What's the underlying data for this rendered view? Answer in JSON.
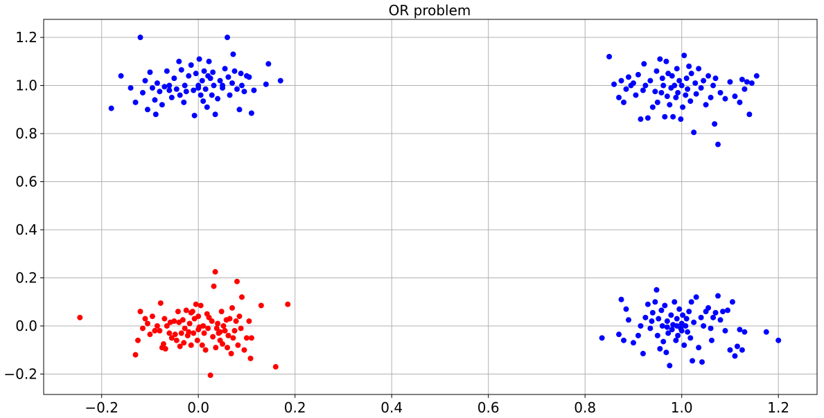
{
  "chart_data": {
    "type": "scatter",
    "title": "OR problem",
    "xlabel": "",
    "ylabel": "",
    "xlim": [
      -0.32,
      1.28
    ],
    "ylim": [
      -0.285,
      1.275
    ],
    "xticks": [
      -0.2,
      0.0,
      0.2,
      0.4,
      0.6,
      0.8,
      1.0,
      1.2
    ],
    "xtick_labels": [
      "−0.2",
      "0.0",
      "0.2",
      "0.4",
      "0.6",
      "0.8",
      "1.0",
      "1.2"
    ],
    "yticks": [
      -0.2,
      0.0,
      0.2,
      0.4,
      0.6,
      0.8,
      1.0,
      1.2
    ],
    "ytick_labels": [
      "−0.2",
      "0.0",
      "0.2",
      "0.4",
      "0.6",
      "0.8",
      "1.0",
      "1.2"
    ],
    "grid": true,
    "legend": "none",
    "series": [
      {
        "color": "#ff0000",
        "points": [
          [
            -0.245,
            0.035
          ],
          [
            -0.13,
            -0.12
          ],
          [
            -0.125,
            -0.06
          ],
          [
            -0.12,
            0.06
          ],
          [
            -0.115,
            -0.01
          ],
          [
            -0.11,
            0.03
          ],
          [
            -0.105,
            0.01
          ],
          [
            -0.1,
            -0.035
          ],
          [
            -0.095,
            0.04
          ],
          [
            -0.09,
            -0.02
          ],
          [
            -0.085,
            0.0
          ],
          [
            -0.08,
            -0.02
          ],
          [
            -0.078,
            0.095
          ],
          [
            -0.075,
            -0.09
          ],
          [
            -0.072,
            -0.075
          ],
          [
            -0.07,
            0.03
          ],
          [
            -0.068,
            -0.095
          ],
          [
            -0.065,
            0.0
          ],
          [
            -0.06,
            -0.03
          ],
          [
            -0.058,
            0.015
          ],
          [
            -0.055,
            -0.05
          ],
          [
            -0.05,
            0.02
          ],
          [
            -0.048,
            -0.035
          ],
          [
            -0.045,
            -0.06
          ],
          [
            -0.042,
            0.06
          ],
          [
            -0.04,
            0.015
          ],
          [
            -0.038,
            -0.085
          ],
          [
            -0.035,
            -0.03
          ],
          [
            -0.032,
            0.025
          ],
          [
            -0.03,
            -0.07
          ],
          [
            -0.028,
            -0.01
          ],
          [
            -0.025,
            0.065
          ],
          [
            -0.022,
            -0.04
          ],
          [
            -0.02,
            -0.025
          ],
          [
            -0.018,
            0.01
          ],
          [
            -0.015,
            -0.08
          ],
          [
            -0.012,
            0.06
          ],
          [
            -0.01,
            -0.03
          ],
          [
            -0.008,
            0.03
          ],
          [
            -0.005,
            0.09
          ],
          [
            -0.002,
            -0.06
          ],
          [
            0.0,
            0.04
          ],
          [
            0.002,
            -0.005
          ],
          [
            0.005,
            0.085
          ],
          [
            0.008,
            -0.08
          ],
          [
            0.01,
            0.0
          ],
          [
            0.012,
            -0.03
          ],
          [
            0.015,
            -0.1
          ],
          [
            0.018,
            0.05
          ],
          [
            0.02,
            -0.01
          ],
          [
            0.022,
            0.035
          ],
          [
            0.025,
            -0.205
          ],
          [
            0.028,
            0.02
          ],
          [
            0.03,
            -0.045
          ],
          [
            0.032,
            0.165
          ],
          [
            0.035,
            0.225
          ],
          [
            0.036,
            -0.09
          ],
          [
            0.038,
            -0.01
          ],
          [
            0.04,
            0.01
          ],
          [
            0.042,
            -0.03
          ],
          [
            0.045,
            -0.06
          ],
          [
            0.048,
            0.06
          ],
          [
            0.05,
            -0.075
          ],
          [
            0.052,
            0.0
          ],
          [
            0.055,
            -0.02
          ],
          [
            0.058,
            0.025
          ],
          [
            0.06,
            -0.09
          ],
          [
            0.062,
            -0.04
          ],
          [
            0.065,
            0.03
          ],
          [
            0.068,
            -0.115
          ],
          [
            0.07,
            0.075
          ],
          [
            0.072,
            -0.05
          ],
          [
            0.075,
            -0.02
          ],
          [
            0.078,
            0.02
          ],
          [
            0.08,
            0.185
          ],
          [
            0.082,
            -0.08
          ],
          [
            0.085,
            0.04
          ],
          [
            0.088,
            -0.01
          ],
          [
            0.09,
            0.12
          ],
          [
            0.095,
            -0.1
          ],
          [
            0.1,
            -0.05
          ],
          [
            0.105,
            0.02
          ],
          [
            0.108,
            -0.135
          ],
          [
            0.11,
            -0.05
          ],
          [
            0.13,
            0.085
          ],
          [
            0.16,
            -0.17
          ],
          [
            0.185,
            0.09
          ],
          [
            -0.015,
            0.055
          ],
          [
            0.045,
            -0.025
          ],
          [
            0.0,
            -0.015
          ]
        ]
      },
      {
        "color": "#0000ff",
        "points": [
          [
            -0.18,
            0.905
          ],
          [
            -0.16,
            1.04
          ],
          [
            -0.14,
            0.99
          ],
          [
            -0.13,
            0.93
          ],
          [
            -0.12,
            1.2
          ],
          [
            -0.115,
            0.97
          ],
          [
            -0.11,
            1.02
          ],
          [
            -0.105,
            0.9
          ],
          [
            -0.1,
            1.055
          ],
          [
            -0.095,
            0.99
          ],
          [
            -0.09,
            0.94
          ],
          [
            -0.088,
            0.88
          ],
          [
            -0.085,
            1.01
          ],
          [
            -0.08,
            0.975
          ],
          [
            -0.075,
            0.92
          ],
          [
            -0.07,
            0.995
          ],
          [
            -0.065,
            1.06
          ],
          [
            -0.06,
            0.98
          ],
          [
            -0.055,
            0.95
          ],
          [
            -0.05,
            1.03
          ],
          [
            -0.045,
            0.985
          ],
          [
            -0.04,
            1.1
          ],
          [
            -0.038,
            0.96
          ],
          [
            -0.035,
            1.065
          ],
          [
            -0.03,
            0.93
          ],
          [
            -0.028,
            1.0
          ],
          [
            -0.025,
            0.975
          ],
          [
            -0.02,
            1.04
          ],
          [
            -0.015,
            1.085
          ],
          [
            -0.01,
            0.98
          ],
          [
            -0.008,
            0.875
          ],
          [
            -0.005,
            1.05
          ],
          [
            0.0,
            0.99
          ],
          [
            0.002,
            1.11
          ],
          [
            0.005,
            0.96
          ],
          [
            0.008,
            1.02
          ],
          [
            0.01,
            0.935
          ],
          [
            0.012,
            1.06
          ],
          [
            0.015,
            0.985
          ],
          [
            0.018,
            0.91
          ],
          [
            0.02,
            1.04
          ],
          [
            0.022,
            1.1
          ],
          [
            0.025,
            1.03
          ],
          [
            0.028,
            0.96
          ],
          [
            0.03,
            1.055
          ],
          [
            0.032,
            1.0
          ],
          [
            0.035,
            0.88
          ],
          [
            0.04,
            0.945
          ],
          [
            0.045,
            1.02
          ],
          [
            0.05,
            0.99
          ],
          [
            0.055,
            1.07
          ],
          [
            0.06,
            1.2
          ],
          [
            0.062,
            1.035
          ],
          [
            0.065,
            0.96
          ],
          [
            0.07,
            1.01
          ],
          [
            0.072,
            1.13
          ],
          [
            0.075,
            1.06
          ],
          [
            0.08,
            0.985
          ],
          [
            0.085,
            0.9
          ],
          [
            0.088,
            1.05
          ],
          [
            0.09,
            1.0
          ],
          [
            0.095,
            0.975
          ],
          [
            0.1,
            1.04
          ],
          [
            0.105,
            1.035
          ],
          [
            0.11,
            0.885
          ],
          [
            0.115,
            0.98
          ],
          [
            0.14,
            1.005
          ],
          [
            0.145,
            1.09
          ],
          [
            0.17,
            1.02
          ],
          [
            -0.06,
            1.0
          ],
          [
            0.0,
            1.0
          ],
          [
            0.05,
            1.0
          ],
          [
            0.85,
            1.12
          ],
          [
            0.86,
            1.005
          ],
          [
            0.87,
            0.95
          ],
          [
            0.875,
            1.02
          ],
          [
            0.88,
            0.93
          ],
          [
            0.885,
            0.985
          ],
          [
            0.89,
            1.035
          ],
          [
            0.895,
            1.0
          ],
          [
            0.9,
            1.01
          ],
          [
            0.905,
            0.96
          ],
          [
            0.91,
            1.045
          ],
          [
            0.915,
            0.86
          ],
          [
            0.92,
            0.98
          ],
          [
            0.922,
            1.09
          ],
          [
            0.925,
            1.0
          ],
          [
            0.93,
            0.865
          ],
          [
            0.935,
            1.02
          ],
          [
            0.94,
            0.91
          ],
          [
            0.945,
            0.975
          ],
          [
            0.948,
            1.06
          ],
          [
            0.95,
            0.93
          ],
          [
            0.955,
            1.11
          ],
          [
            0.958,
            0.97
          ],
          [
            0.96,
            1.03
          ],
          [
            0.962,
            1.0
          ],
          [
            0.965,
            0.87
          ],
          [
            0.968,
            1.1
          ],
          [
            0.97,
            0.955
          ],
          [
            0.972,
            1.05
          ],
          [
            0.975,
            0.92
          ],
          [
            0.978,
            0.99
          ],
          [
            0.98,
            1.04
          ],
          [
            0.982,
            0.87
          ],
          [
            0.985,
            1.0
          ],
          [
            0.988,
            0.95
          ],
          [
            0.99,
            1.07
          ],
          [
            0.992,
            0.97
          ],
          [
            0.995,
            1.02
          ],
          [
            0.998,
            0.86
          ],
          [
            1.0,
            1.0
          ],
          [
            1.002,
            0.91
          ],
          [
            1.005,
            1.125
          ],
          [
            1.008,
            0.96
          ],
          [
            1.01,
            1.03
          ],
          [
            1.012,
            0.985
          ],
          [
            1.015,
            1.08
          ],
          [
            1.018,
            0.935
          ],
          [
            1.02,
            1.05
          ],
          [
            1.025,
            0.805
          ],
          [
            1.028,
            1.01
          ],
          [
            1.03,
            0.965
          ],
          [
            1.035,
            1.07
          ],
          [
            1.04,
            0.99
          ],
          [
            1.045,
            1.02
          ],
          [
            1.05,
            0.92
          ],
          [
            1.055,
            1.04
          ],
          [
            1.06,
            0.95
          ],
          [
            1.065,
            1.0
          ],
          [
            1.068,
            0.84
          ],
          [
            1.07,
            1.03
          ],
          [
            1.075,
            0.755
          ],
          [
            1.08,
            0.97
          ],
          [
            1.09,
            0.945
          ],
          [
            1.1,
            1.015
          ],
          [
            1.11,
            0.955
          ],
          [
            1.12,
            0.93
          ],
          [
            1.125,
            1.025
          ],
          [
            1.13,
            0.985
          ],
          [
            1.135,
            1.015
          ],
          [
            1.14,
            0.88
          ],
          [
            1.145,
            1.01
          ],
          [
            1.155,
            1.04
          ],
          [
            0.835,
            -0.05
          ],
          [
            0.87,
            -0.035
          ],
          [
            0.875,
            0.11
          ],
          [
            0.88,
            -0.06
          ],
          [
            0.885,
            0.07
          ],
          [
            0.89,
            0.025
          ],
          [
            0.9,
            -0.07
          ],
          [
            0.91,
            -0.04
          ],
          [
            0.915,
            0.0
          ],
          [
            0.92,
            -0.115
          ],
          [
            0.925,
            0.035
          ],
          [
            0.93,
            0.09
          ],
          [
            0.935,
            -0.01
          ],
          [
            0.938,
            0.02
          ],
          [
            0.94,
            0.055
          ],
          [
            0.945,
            0.1
          ],
          [
            0.948,
            0.15
          ],
          [
            0.95,
            -0.04
          ],
          [
            0.952,
            0.03
          ],
          [
            0.955,
            -0.095
          ],
          [
            0.958,
            0.065
          ],
          [
            0.96,
            0.0
          ],
          [
            0.962,
            -0.065
          ],
          [
            0.965,
            0.085
          ],
          [
            0.968,
            -0.11
          ],
          [
            0.97,
            0.02
          ],
          [
            0.972,
            -0.03
          ],
          [
            0.975,
            -0.165
          ],
          [
            0.978,
            0.045
          ],
          [
            0.98,
            -0.015
          ],
          [
            0.982,
            0.005
          ],
          [
            0.985,
            0.1
          ],
          [
            0.988,
            -0.06
          ],
          [
            0.99,
            0.03
          ],
          [
            0.992,
            -0.04
          ],
          [
            0.995,
            0.07
          ],
          [
            0.998,
            -0.01
          ],
          [
            1.0,
            0.01
          ],
          [
            1.002,
            0.045
          ],
          [
            1.005,
            -0.08
          ],
          [
            1.008,
            0.0
          ],
          [
            1.01,
            0.03
          ],
          [
            1.012,
            -0.025
          ],
          [
            1.015,
            0.06
          ],
          [
            1.018,
            -0.05
          ],
          [
            1.02,
            0.1
          ],
          [
            1.022,
            -0.145
          ],
          [
            1.025,
            0.015
          ],
          [
            1.03,
            0.12
          ],
          [
            1.035,
            -0.09
          ],
          [
            1.04,
            0.035
          ],
          [
            1.042,
            -0.15
          ],
          [
            1.045,
            0.0
          ],
          [
            1.05,
            0.06
          ],
          [
            1.055,
            0.075
          ],
          [
            1.06,
            -0.01
          ],
          [
            1.062,
            -0.06
          ],
          [
            1.065,
            0.035
          ],
          [
            1.07,
            0.055
          ],
          [
            1.075,
            0.125
          ],
          [
            1.08,
            0.025
          ],
          [
            1.085,
            0.06
          ],
          [
            1.09,
            -0.02
          ],
          [
            1.095,
            0.065
          ],
          [
            1.1,
            -0.1
          ],
          [
            1.105,
            0.1
          ],
          [
            1.11,
            -0.125
          ],
          [
            1.115,
            -0.085
          ],
          [
            1.12,
            -0.015
          ],
          [
            1.125,
            -0.1
          ],
          [
            1.13,
            -0.025
          ],
          [
            1.175,
            -0.025
          ],
          [
            1.2,
            -0.06
          ],
          [
            0.99,
            0.0
          ],
          [
            1.0,
            -0.02
          ],
          [
            0.97,
            -0.005
          ]
        ]
      }
    ]
  }
}
